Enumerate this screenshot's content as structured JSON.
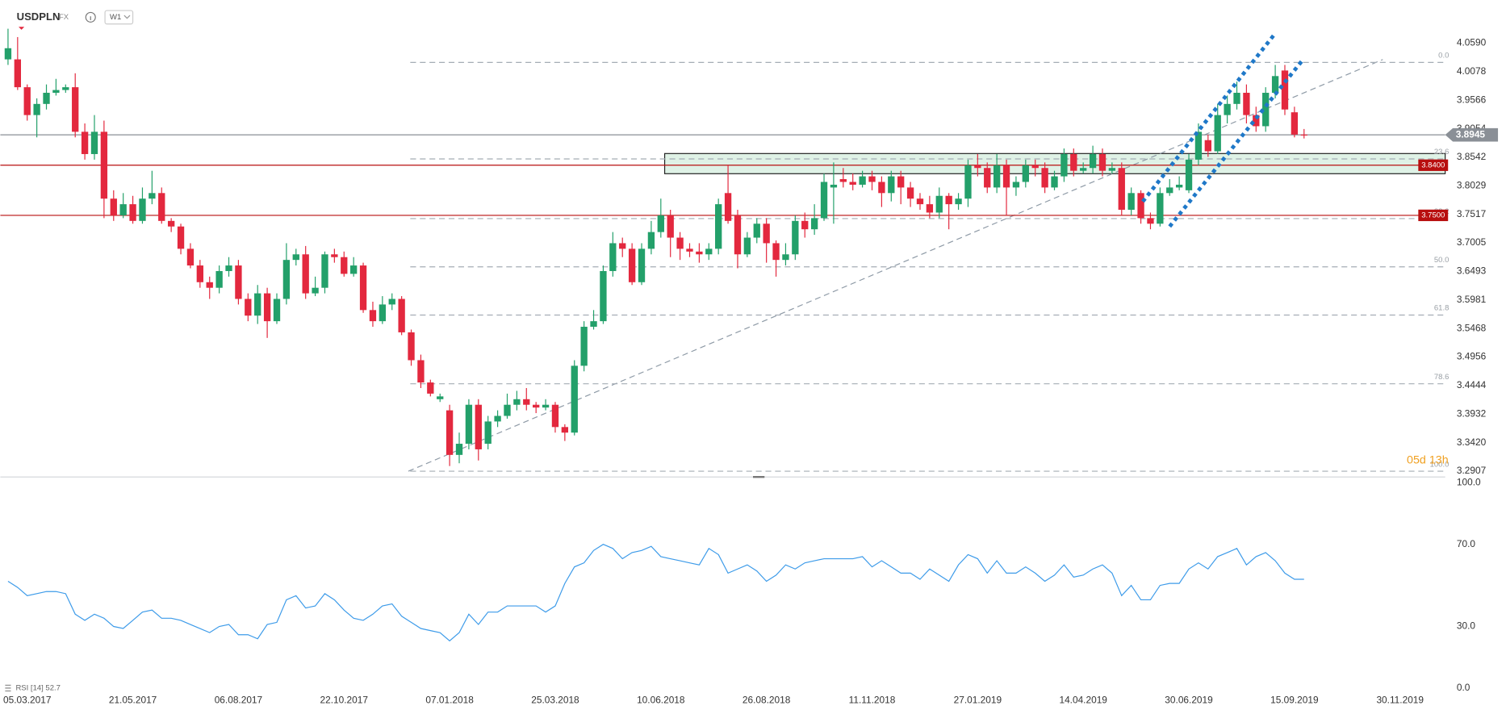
{
  "chart_data": [
    {
      "type": "candlestick",
      "symbol": "USDPLN",
      "market": "FX",
      "interval": "W1",
      "countdown": "05d 13h",
      "up_color": "#23a06a",
      "down_color": "#e3283e",
      "open": [
        4.03,
        4.03,
        3.98,
        3.93,
        3.95,
        3.97,
        3.975,
        3.98,
        3.9,
        3.86,
        3.9,
        3.78,
        3.75,
        3.77,
        3.74,
        3.78,
        3.79,
        3.74,
        3.73,
        3.69,
        3.66,
        3.63,
        3.62,
        3.65,
        3.66,
        3.6,
        3.57,
        3.61,
        3.56,
        3.6,
        3.67,
        3.68,
        3.61,
        3.62,
        3.68,
        3.675,
        3.645,
        3.66,
        3.58,
        3.56,
        3.59,
        3.6,
        3.54,
        3.49,
        3.45,
        3.42,
        3.4,
        3.32,
        3.34,
        3.41,
        3.34,
        3.38,
        3.39,
        3.41,
        3.42,
        3.41,
        3.405,
        3.41,
        3.37,
        3.36,
        3.48,
        3.55,
        3.56,
        3.65,
        3.7,
        3.69,
        3.63,
        3.69,
        3.72,
        3.75,
        3.71,
        3.69,
        3.685,
        3.68,
        3.69,
        3.79,
        3.75,
        3.68,
        3.71,
        3.735,
        3.7,
        3.67,
        3.68,
        3.74,
        3.725,
        3.745,
        3.8,
        3.815,
        3.81,
        3.805,
        3.82,
        3.81,
        3.79,
        3.82,
        3.8,
        3.78,
        3.77,
        3.755,
        3.785,
        3.77,
        3.78,
        3.84,
        3.835,
        3.8,
        3.84,
        3.8,
        3.81,
        3.84,
        3.835,
        3.8,
        3.82,
        3.86,
        3.83,
        3.835,
        3.86,
        3.83,
        3.835,
        3.76,
        3.79,
        3.745,
        3.735,
        3.79,
        3.8,
        3.795,
        3.85,
        3.885,
        3.865,
        3.93,
        3.95,
        3.97,
        3.93,
        3.91,
        3.97,
        4.01,
        3.935,
        3.895
      ],
      "high": [
        4.085,
        4.07,
        3.985,
        3.96,
        3.985,
        3.995,
        3.985,
        4.005,
        3.915,
        3.93,
        3.92,
        3.795,
        3.79,
        3.785,
        3.8,
        3.83,
        3.8,
        3.745,
        3.735,
        3.7,
        3.67,
        3.64,
        3.66,
        3.675,
        3.67,
        3.61,
        3.625,
        3.62,
        3.61,
        3.7,
        3.69,
        3.695,
        3.64,
        3.685,
        3.69,
        3.685,
        3.675,
        3.665,
        3.595,
        3.605,
        3.61,
        3.605,
        3.545,
        3.5,
        3.455,
        3.43,
        3.41,
        3.36,
        3.42,
        3.42,
        3.39,
        3.4,
        3.43,
        3.435,
        3.44,
        3.415,
        3.42,
        3.415,
        3.375,
        3.49,
        3.56,
        3.58,
        3.66,
        3.72,
        3.71,
        3.7,
        3.7,
        3.74,
        3.78,
        3.76,
        3.72,
        3.7,
        3.7,
        3.7,
        3.78,
        3.84,
        3.76,
        3.72,
        3.745,
        3.745,
        3.705,
        3.7,
        3.75,
        3.755,
        3.77,
        3.825,
        3.845,
        3.835,
        3.825,
        3.83,
        3.83,
        3.82,
        3.83,
        3.83,
        3.81,
        3.79,
        3.785,
        3.8,
        3.79,
        3.79,
        3.85,
        3.86,
        3.845,
        3.86,
        3.85,
        3.82,
        3.85,
        3.85,
        3.845,
        3.83,
        3.87,
        3.87,
        3.845,
        3.875,
        3.87,
        3.845,
        3.845,
        3.8,
        3.795,
        3.755,
        3.8,
        3.815,
        3.82,
        3.86,
        3.915,
        3.895,
        3.95,
        3.965,
        3.99,
        3.985,
        3.945,
        3.98,
        4.02,
        4.02,
        3.945,
        3.905
      ],
      "low": [
        4.02,
        3.975,
        3.92,
        3.89,
        3.94,
        3.965,
        3.97,
        3.89,
        3.85,
        3.85,
        3.745,
        3.74,
        3.745,
        3.735,
        3.735,
        3.77,
        3.735,
        3.72,
        3.68,
        3.655,
        3.62,
        3.6,
        3.61,
        3.64,
        3.59,
        3.56,
        3.555,
        3.53,
        3.555,
        3.59,
        3.66,
        3.6,
        3.605,
        3.61,
        3.665,
        3.64,
        3.64,
        3.575,
        3.55,
        3.555,
        3.58,
        3.535,
        3.48,
        3.44,
        3.425,
        3.415,
        3.3,
        3.305,
        3.33,
        3.31,
        3.33,
        3.37,
        3.385,
        3.4,
        3.4,
        3.395,
        3.4,
        3.36,
        3.345,
        3.355,
        3.47,
        3.545,
        3.555,
        3.64,
        3.675,
        3.625,
        3.625,
        3.68,
        3.71,
        3.675,
        3.67,
        3.675,
        3.665,
        3.67,
        3.68,
        3.735,
        3.655,
        3.675,
        3.7,
        3.665,
        3.64,
        3.66,
        3.67,
        3.71,
        3.715,
        3.74,
        3.735,
        3.8,
        3.795,
        3.8,
        3.795,
        3.765,
        3.775,
        3.77,
        3.765,
        3.76,
        3.745,
        3.745,
        3.725,
        3.76,
        3.765,
        3.82,
        3.79,
        3.79,
        3.75,
        3.785,
        3.8,
        3.82,
        3.79,
        3.795,
        3.81,
        3.82,
        3.825,
        3.825,
        3.82,
        3.825,
        3.75,
        3.75,
        3.735,
        3.725,
        3.73,
        3.785,
        3.795,
        3.79,
        3.84,
        3.855,
        3.86,
        3.915,
        3.94,
        3.915,
        3.9,
        3.9,
        3.96,
        3.93,
        3.89,
        3.888
      ],
      "close": [
        4.05,
        3.98,
        3.93,
        3.95,
        3.97,
        3.975,
        3.98,
        3.9,
        3.86,
        3.9,
        3.78,
        3.75,
        3.77,
        3.74,
        3.78,
        3.79,
        3.74,
        3.73,
        3.69,
        3.66,
        3.63,
        3.62,
        3.65,
        3.66,
        3.6,
        3.57,
        3.61,
        3.56,
        3.6,
        3.67,
        3.68,
        3.61,
        3.62,
        3.68,
        3.675,
        3.645,
        3.66,
        3.58,
        3.56,
        3.59,
        3.6,
        3.54,
        3.49,
        3.45,
        3.43,
        3.425,
        3.32,
        3.34,
        3.41,
        3.33,
        3.38,
        3.39,
        3.41,
        3.42,
        3.41,
        3.405,
        3.41,
        3.37,
        3.36,
        3.48,
        3.55,
        3.56,
        3.65,
        3.7,
        3.69,
        3.63,
        3.69,
        3.72,
        3.75,
        3.71,
        3.69,
        3.685,
        3.68,
        3.69,
        3.77,
        3.74,
        3.68,
        3.71,
        3.735,
        3.7,
        3.67,
        3.68,
        3.74,
        3.725,
        3.745,
        3.81,
        3.805,
        3.81,
        3.805,
        3.82,
        3.81,
        3.79,
        3.82,
        3.8,
        3.78,
        3.77,
        3.755,
        3.785,
        3.77,
        3.78,
        3.84,
        3.835,
        3.8,
        3.84,
        3.8,
        3.81,
        3.84,
        3.835,
        3.8,
        3.82,
        3.86,
        3.83,
        3.835,
        3.86,
        3.83,
        3.835,
        3.76,
        3.79,
        3.745,
        3.735,
        3.79,
        3.8,
        3.805,
        3.85,
        3.9,
        3.865,
        3.93,
        3.95,
        3.97,
        3.93,
        3.91,
        3.97,
        4.0,
        3.94,
        3.895,
        3.8945
      ],
      "xlim": [
        -0.8,
        149.7
      ],
      "ylim": [
        3.2804,
        4.1021
      ],
      "yticks": [
        {
          "value": 4.059,
          "label": "4.0590"
        },
        {
          "value": 4.0078,
          "label": "4.0078"
        },
        {
          "value": 3.9566,
          "label": "3.9566"
        },
        {
          "value": 3.9054,
          "label": "3.9054"
        },
        {
          "value": 3.8542,
          "label": "3.8542"
        },
        {
          "value": 3.8029,
          "label": "3.8029"
        },
        {
          "value": 3.7517,
          "label": "3.7517"
        },
        {
          "value": 3.7005,
          "label": "3.7005"
        },
        {
          "value": 3.6493,
          "label": "3.6493"
        },
        {
          "value": 3.5981,
          "label": "3.5981"
        },
        {
          "value": 3.5468,
          "label": "3.5468"
        },
        {
          "value": 3.4956,
          "label": "3.4956"
        },
        {
          "value": 3.4444,
          "label": "3.4444"
        },
        {
          "value": 3.3932,
          "label": "3.3932"
        },
        {
          "value": 3.342,
          "label": "3.3420"
        },
        {
          "value": 3.2907,
          "label": "3.2907"
        }
      ],
      "grid": false,
      "price_lines": [
        {
          "value": 3.8945,
          "label": "3.8945",
          "color": "#8a8f96",
          "tag": "axis"
        },
        {
          "value": 3.84,
          "label": "3.8400",
          "color": "#b80f0f",
          "tag": "plot"
        },
        {
          "value": 3.75,
          "label": "3.7500",
          "color": "#b80f0f",
          "tag": "plot"
        }
      ],
      "fib_levels": [
        {
          "value": 4.0245,
          "label": "0.0"
        },
        {
          "value": 3.8513,
          "label": "23.6"
        },
        {
          "value": 3.7442,
          "label": "38.2"
        },
        {
          "value": 3.6576,
          "label": "50.0"
        },
        {
          "value": 3.571,
          "label": "61.8"
        },
        {
          "value": 3.4477,
          "label": "78.6"
        },
        {
          "value": 3.2907,
          "label": "100.0"
        }
      ]
    },
    {
      "type": "line",
      "legend": "RSI [14] 52.7",
      "color": "#3d9be9",
      "values": [
        52,
        49,
        45,
        46,
        47,
        47,
        46,
        36,
        33,
        36,
        34,
        30,
        29,
        33,
        37,
        38,
        34,
        34,
        33,
        31,
        29,
        27,
        30,
        31,
        26,
        26,
        24,
        31,
        32,
        43,
        45,
        39,
        40,
        46,
        43,
        38,
        34,
        33,
        36,
        40,
        41,
        35,
        32,
        29,
        28,
        27,
        23,
        27,
        36,
        31,
        37,
        37,
        40,
        40,
        40,
        40,
        37,
        40,
        51,
        59,
        61,
        67,
        70,
        68,
        63,
        66,
        67,
        69,
        64,
        63,
        62,
        61,
        60,
        68,
        65,
        56,
        58,
        60,
        57,
        52,
        55,
        60,
        58,
        61,
        62,
        63,
        63,
        63,
        63,
        64,
        59,
        62,
        59,
        56,
        56,
        53,
        58,
        55,
        52,
        60,
        65,
        63,
        56,
        62,
        56,
        56,
        59,
        56,
        52,
        55,
        60,
        54,
        55,
        58,
        60,
        56,
        45,
        50,
        43,
        43,
        50,
        51,
        51,
        58,
        61,
        58,
        64,
        66,
        68,
        60,
        64,
        66,
        62,
        56,
        53,
        53
      ],
      "xlim": [
        -0.8,
        149.7
      ],
      "xticks": [
        {
          "value": 2,
          "label": "05.03.2017"
        },
        {
          "value": 13,
          "label": "21.05.2017"
        },
        {
          "value": 24,
          "label": "06.08.2017"
        },
        {
          "value": 35,
          "label": "22.10.2017"
        },
        {
          "value": 46,
          "label": "07.01.2018"
        },
        {
          "value": 57,
          "label": "25.03.2018"
        },
        {
          "value": 68,
          "label": "10.06.2018"
        },
        {
          "value": 79,
          "label": "26.08.2018"
        },
        {
          "value": 90,
          "label": "11.11.2018"
        },
        {
          "value": 101,
          "label": "27.01.2019"
        },
        {
          "value": 112,
          "label": "14.04.2019"
        },
        {
          "value": 123,
          "label": "30.06.2019"
        },
        {
          "value": 134,
          "label": "15.09.2019"
        },
        {
          "value": 145,
          "label": "30.11.2019"
        }
      ],
      "ylim": [
        0,
        100
      ],
      "yticks": [
        {
          "value": 100,
          "label": "100.0"
        },
        {
          "value": 70,
          "label": "70.0"
        },
        {
          "value": 30,
          "label": "30.0"
        },
        {
          "value": 0,
          "label": "0.0"
        }
      ]
    }
  ]
}
